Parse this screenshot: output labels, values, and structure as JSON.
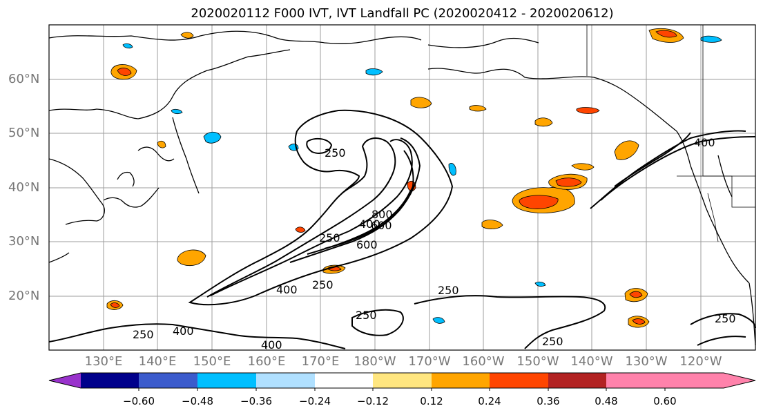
{
  "title": "2020020112 F000 IVT, IVT Landfall PC (2020020412 - 2020020612)",
  "lat_labels": [
    "60°N",
    "50°N",
    "40°N",
    "30°N",
    "20°N"
  ],
  "lon_labels": [
    "130°E",
    "140°E",
    "150°E",
    "160°E",
    "170°E",
    "180°W",
    "170°W",
    "160°W",
    "150°W",
    "140°W",
    "130°W",
    "120°W"
  ],
  "colorbar": {
    "colors": [
      "#9932cc",
      "#00008b",
      "#3b5bcc",
      "#00bfff",
      "#b0e0ff",
      "#ffffff",
      "#ffe680",
      "#ffa500",
      "#ff4500",
      "#b22222",
      "#ff82ab"
    ],
    "ticks": [
      "−0.60",
      "−0.48",
      "−0.36",
      "−0.24",
      "−0.12",
      "0.12",
      "0.24",
      "0.36",
      "0.48",
      "0.60"
    ]
  },
  "contour_labels": [
    "250",
    "400",
    "600",
    "250",
    "400",
    "250",
    "250",
    "400",
    "250",
    "250",
    "250",
    "250",
    "400",
    "400",
    "800",
    "600"
  ]
}
